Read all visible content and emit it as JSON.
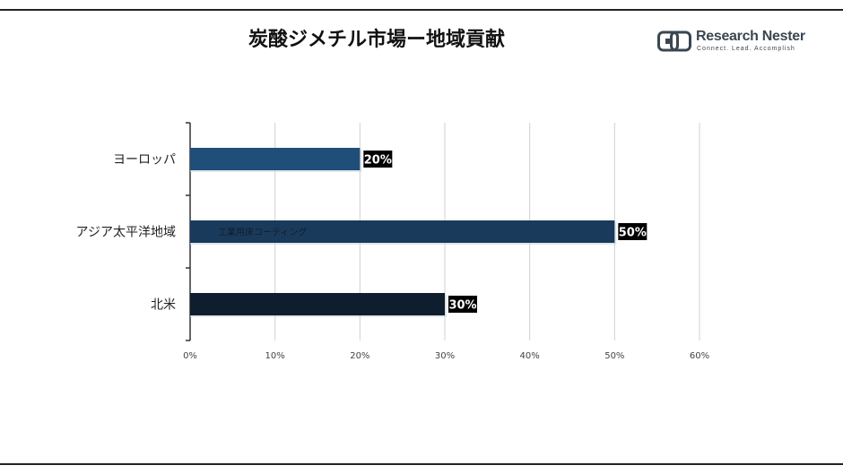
{
  "title": "炭酸ジメチル市場ー地域貢献",
  "logo": {
    "name": "Research Nester",
    "tagline": "Connect. Lead. Accomplish"
  },
  "chart_data": {
    "type": "bar",
    "orientation": "horizontal",
    "categories": [
      "ヨーロッパ",
      "アジア太平洋地域",
      "北米"
    ],
    "values": [
      20,
      50,
      30
    ],
    "data_labels": [
      "20%",
      "50%",
      "30%"
    ],
    "colors": [
      "#1f4e79",
      "#1a3a5c",
      "#0e1e2e"
    ],
    "xlim": [
      0,
      60
    ],
    "x_ticks": [
      "0%",
      "10%",
      "20%",
      "30%",
      "40%",
      "50%",
      "60%"
    ],
    "grid": "vertical",
    "legend": "none",
    "annotation": "工業用床コーティング"
  }
}
